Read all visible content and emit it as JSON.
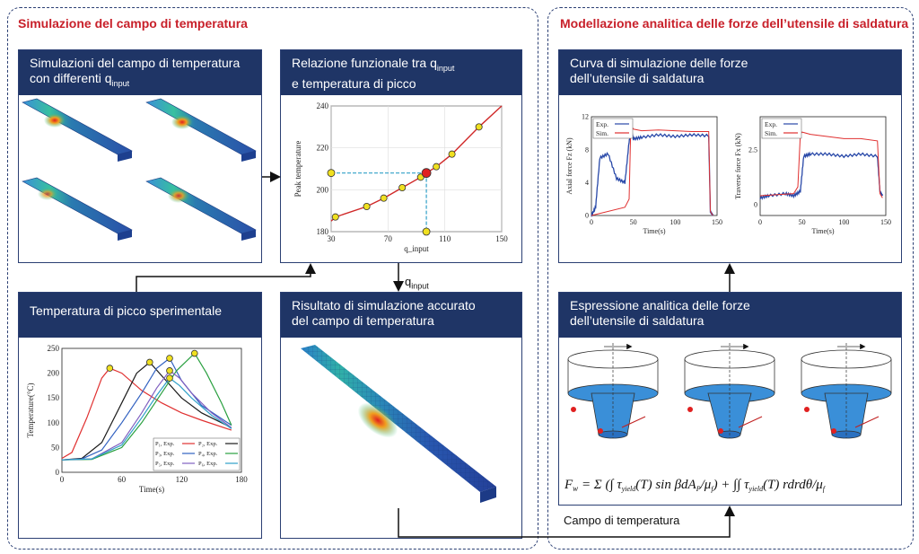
{
  "left_section": {
    "title": "Simulazione del campo di temperatura"
  },
  "right_section": {
    "title": "Modellazione analitica delle forze dell’utensile di saldatura"
  },
  "panels": {
    "sim_field": {
      "line1": "Simulazioni del campo di temperatura",
      "line2": "con differenti q",
      "line2_sub": "input"
    },
    "relation": {
      "line1": "Relazione funzionale tra q",
      "line1_sub": "input",
      "line2": "e temperatura di picco"
    },
    "peak_exp": {
      "line1": "Temperatura di picco sperimentale"
    },
    "accurate": {
      "line1": "Risultato di simulazione accurato",
      "line2": "del campo di temperatura"
    },
    "force_curve": {
      "line1": "Curva di simulazione delle forze",
      "line2": "dell’utensile di saldatura"
    },
    "force_expr": {
      "line1": "Espressione analitica delle forze",
      "line2": "dell’utensile di saldatura"
    }
  },
  "labels": {
    "q_arrow": "q",
    "q_arrow_sub": "input",
    "bottom_arrow": "Campo di temperatura"
  },
  "chart_data": [
    {
      "type": "scatter",
      "title": "",
      "xlabel": "q_input",
      "ylabel": "Peak temperature",
      "xlim": [
        30,
        150
      ],
      "ylim": [
        180,
        240
      ],
      "xticks": [
        30,
        70,
        110,
        150
      ],
      "yticks": [
        180,
        200,
        220,
        240
      ],
      "x": [
        33,
        55,
        67,
        80,
        93,
        97,
        104,
        115,
        134
      ],
      "y": [
        187,
        192,
        196,
        201,
        206,
        208,
        211,
        217,
        230
      ],
      "highlight": {
        "x": 97,
        "y": 208
      },
      "grid": true
    },
    {
      "type": "line",
      "xlabel": "Time(s)",
      "ylabel": "Temperature(°C)",
      "xlim": [
        0,
        180
      ],
      "ylim": [
        0,
        250
      ],
      "xticks": [
        0,
        60,
        120,
        180
      ],
      "yticks": [
        0,
        50,
        100,
        150,
        200,
        250
      ],
      "legend": [
        "P₁, Exp.",
        "P₂, Exp.",
        "P₃, Exp.",
        "P₄, Exp.",
        "P₅, Exp.",
        "P₆, Exp."
      ],
      "series_colors": [
        "#e03030",
        "#1a1a1a",
        "#3060c0",
        "#2aa040",
        "#8060c0",
        "#30a0c8"
      ],
      "series": [
        {
          "x": [
            0,
            10,
            25,
            40,
            48,
            60,
            80,
            100,
            120,
            140,
            170
          ],
          "y": [
            28,
            40,
            110,
            190,
            210,
            200,
            165,
            140,
            120,
            105,
            85
          ]
        },
        {
          "x": [
            0,
            20,
            40,
            60,
            75,
            88,
            100,
            120,
            140,
            170
          ],
          "y": [
            25,
            28,
            60,
            140,
            200,
            222,
            195,
            150,
            120,
            90
          ]
        },
        {
          "x": [
            0,
            20,
            40,
            60,
            80,
            95,
            108,
            120,
            140,
            170
          ],
          "y": [
            25,
            27,
            45,
            100,
            160,
            210,
            230,
            185,
            135,
            95
          ]
        },
        {
          "x": [
            0,
            30,
            60,
            80,
            100,
            115,
            133,
            145,
            160,
            170
          ],
          "y": [
            25,
            26,
            50,
            100,
            160,
            205,
            240,
            200,
            140,
            95
          ]
        },
        {
          "x": [
            0,
            30,
            60,
            80,
            95,
            108,
            118,
            130,
            150,
            170
          ],
          "y": [
            25,
            27,
            60,
            120,
            170,
            205,
            190,
            160,
            120,
            90
          ]
        },
        {
          "x": [
            0,
            30,
            60,
            80,
            95,
            108,
            118,
            130,
            150,
            170
          ],
          "y": [
            25,
            27,
            55,
            110,
            155,
            190,
            175,
            150,
            115,
            88
          ]
        }
      ],
      "peaks": [
        [
          48,
          210
        ],
        [
          88,
          222
        ],
        [
          108,
          230
        ],
        [
          133,
          240
        ],
        [
          108,
          205
        ],
        [
          108,
          190
        ]
      ]
    },
    {
      "type": "line",
      "xlabel": "Time(s)",
      "ylabel": "Axial force Fz (kN)",
      "xlim": [
        0,
        150
      ],
      "ylim": [
        0,
        12
      ],
      "xticks": [
        0,
        50,
        100,
        150
      ],
      "yticks": [
        0,
        4,
        8,
        12
      ],
      "legend": [
        "Exp.",
        "Sim."
      ],
      "series": [
        {
          "name": "Exp.",
          "x": [
            0,
            5,
            10,
            20,
            30,
            40,
            45,
            48,
            50,
            60,
            80,
            100,
            120,
            140,
            142,
            145
          ],
          "y": [
            0,
            1,
            7,
            7.5,
            4.5,
            4,
            9,
            10.2,
            9.3,
            9.5,
            9.8,
            9.6,
            9.8,
            9.7,
            0.5,
            0
          ]
        },
        {
          "name": "Sim.",
          "x": [
            0,
            40,
            45,
            47,
            50,
            60,
            80,
            100,
            120,
            140,
            142,
            145
          ],
          "y": [
            0,
            1,
            2,
            11,
            10.5,
            10.3,
            10.4,
            10.3,
            10.2,
            10.2,
            0.5,
            0
          ]
        }
      ]
    },
    {
      "type": "line",
      "xlabel": "Time(s)",
      "ylabel": "Traverse force Fx (kN)",
      "xlim": [
        0,
        150
      ],
      "ylim": [
        -0.5,
        4
      ],
      "xticks": [
        0,
        50,
        100,
        150
      ],
      "yticks": [
        0,
        2.5
      ],
      "legend": [
        "Exp.",
        "Sim."
      ],
      "series": [
        {
          "name": "Exp.",
          "x": [
            0,
            10,
            30,
            40,
            48,
            52,
            60,
            80,
            100,
            120,
            140,
            143,
            146
          ],
          "y": [
            0.3,
            0.4,
            0.5,
            0.4,
            0.6,
            2.2,
            2.3,
            2.3,
            2.2,
            2.3,
            2.2,
            0.6,
            0.4
          ]
        },
        {
          "name": "Sim.",
          "x": [
            0,
            40,
            45,
            48,
            50,
            60,
            80,
            100,
            120,
            140,
            143,
            146
          ],
          "y": [
            0.4,
            0.5,
            0.8,
            3.2,
            3.3,
            3.2,
            3.1,
            3.0,
            3.0,
            2.9,
            0.5,
            0.3
          ]
        }
      ]
    }
  ],
  "formula": "F = Σ (∫ τ yield (T) sin β dA / μ) + ∫∫ τ yield (T) r dr dθ / μ"
}
